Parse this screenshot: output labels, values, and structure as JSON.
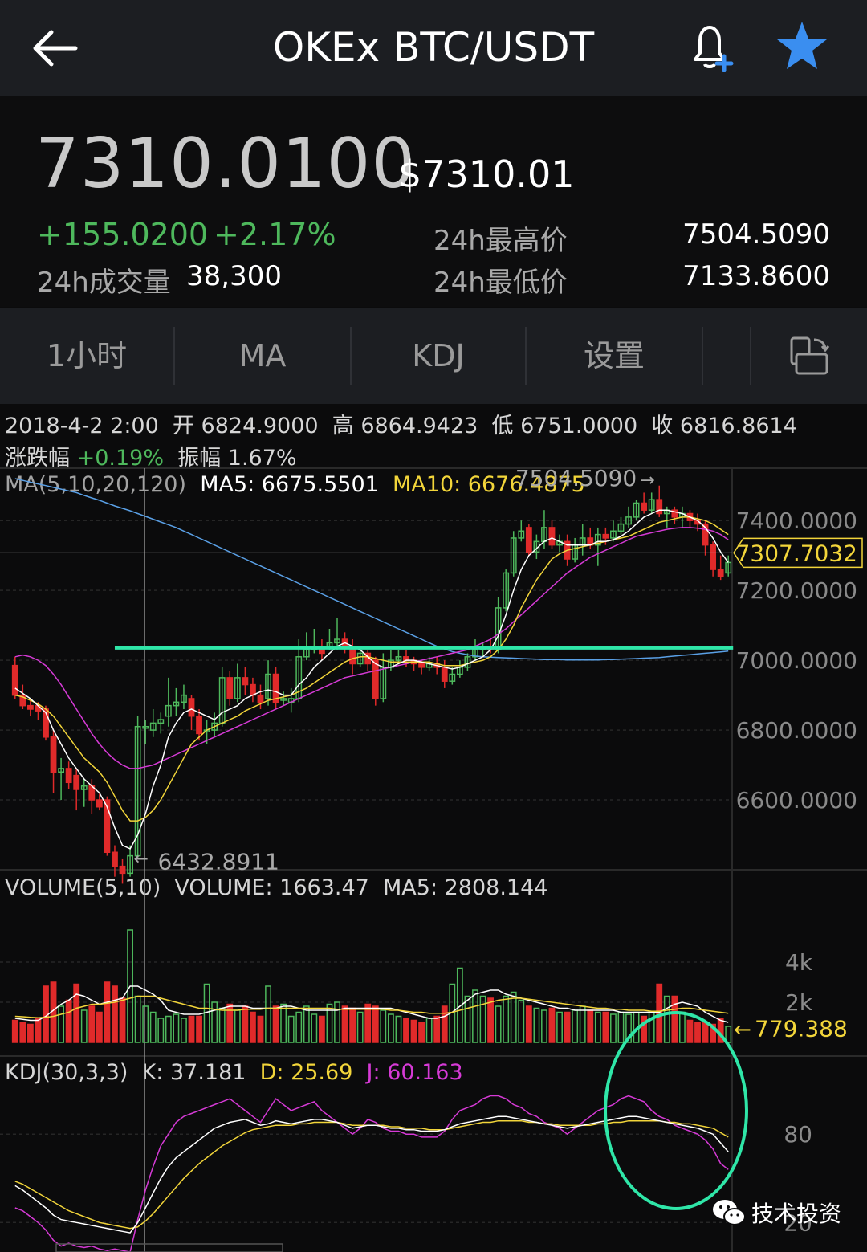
{
  "header": {
    "title": "OKEx BTC/USDT"
  },
  "ticker": {
    "price": "7310.0100",
    "usd_price": "$7310.01",
    "change": "+155.0200",
    "change_pct": "+2.17%",
    "volume_label": "24h成交量",
    "volume": "38,300",
    "high_label": "24h最高价",
    "high": "7504.5090",
    "low_label": "24h最低价",
    "low": "7133.8600"
  },
  "tabs": {
    "interval": "1小时",
    "ma": "MA",
    "kdj": "KDJ",
    "settings": "设置"
  },
  "candle_info": {
    "date": "2018-4-2 2:00",
    "open_label": "开",
    "open": "6824.9000",
    "high_label": "高",
    "high": "6864.9423",
    "low_label": "低",
    "low": "6751.0000",
    "close_label": "收",
    "close": "6816.8614",
    "change_label": "涨跌幅",
    "change": "+0.19%",
    "amp_label": "振幅",
    "amp": "1.67%"
  },
  "ma_legend": {
    "name": "MA(5,10,20,120)",
    "ma5": "MA5: 6675.5501",
    "ma10": "MA10: 6676.4875"
  },
  "vol_legend": {
    "name": "VOLUME(5,10)",
    "volume": "VOLUME: 1663.47",
    "ma5": "MA5: 2808.144"
  },
  "kdj_legend": {
    "name": "KDJ(30,3,3)",
    "k": "K: 37.181",
    "d": "D: 25.69",
    "j": "J: 60.163"
  },
  "watermark": "技术投资",
  "colors": {
    "up": "#4eb85c",
    "down": "#e02a2a",
    "ma5": "#ffffff",
    "ma10": "#f2d53a",
    "ma20": "#d63ad6",
    "ma120": "#5aa0e6",
    "annotation": "#2fe6a8",
    "star": "#3a8ef0"
  },
  "chart_data": {
    "type": "candlestick",
    "price_axis": {
      "ticks": [
        "7400.0000",
        "7200.0000",
        "7000.0000",
        "6800.0000",
        "6600.0000"
      ],
      "range": [
        6400,
        7550
      ]
    },
    "current_price_label": "7307.7032",
    "current_price": 7307.7032,
    "max_label": "7504.5090",
    "max_value": 7504.509,
    "min_label": "6432.8911",
    "min_value": 6432.8911,
    "support_line": 7035,
    "candles": [
      [
        6985,
        6900,
        7010,
        6890
      ],
      [
        6900,
        6870,
        6930,
        6860
      ],
      [
        6870,
        6860,
        6890,
        6840
      ],
      [
        6870,
        6855,
        6880,
        6830
      ],
      [
        6860,
        6780,
        6870,
        6770
      ],
      [
        6780,
        6680,
        6800,
        6620
      ],
      [
        6680,
        6690,
        6720,
        6600
      ],
      [
        6690,
        6650,
        6710,
        6630
      ],
      [
        6670,
        6630,
        6690,
        6570
      ],
      [
        6630,
        6640,
        6660,
        6580
      ],
      [
        6640,
        6600,
        6660,
        6560
      ],
      [
        6600,
        6580,
        6620,
        6570
      ],
      [
        6600,
        6450,
        6610,
        6440
      ],
      [
        6450,
        6410,
        6470,
        6380
      ],
      [
        6410,
        6390,
        6430,
        6360
      ],
      [
        6390,
        6440,
        6470,
        6380
      ],
      [
        6440,
        6810,
        6840,
        6430
      ],
      [
        6810,
        6810,
        6830,
        6760
      ],
      [
        6800,
        6820,
        6860,
        6780
      ],
      [
        6820,
        6830,
        6850,
        6790
      ],
      [
        6840,
        6870,
        6950,
        6810
      ],
      [
        6870,
        6880,
        6920,
        6840
      ],
      [
        6880,
        6900,
        6930,
        6860
      ],
      [
        6890,
        6840,
        6900,
        6800
      ],
      [
        6840,
        6790,
        6860,
        6770
      ],
      [
        6800,
        6800,
        6830,
        6760
      ],
      [
        6800,
        6820,
        6850,
        6780
      ],
      [
        6820,
        6950,
        6980,
        6810
      ],
      [
        6950,
        6890,
        6970,
        6870
      ],
      [
        6890,
        6950,
        6990,
        6880
      ],
      [
        6950,
        6930,
        6980,
        6900
      ],
      [
        6930,
        6900,
        6950,
        6880
      ],
      [
        6900,
        6880,
        6930,
        6860
      ],
      [
        6890,
        6960,
        7000,
        6870
      ],
      [
        6960,
        6880,
        6980,
        6860
      ],
      [
        6890,
        6890,
        6910,
        6870
      ],
      [
        6880,
        6890,
        6920,
        6850
      ],
      [
        6890,
        7010,
        7060,
        6880
      ],
      [
        7010,
        7030,
        7080,
        7000
      ],
      [
        7030,
        7040,
        7090,
        7020
      ],
      [
        7040,
        7020,
        7060,
        7000
      ],
      [
        7040,
        7050,
        7090,
        7030
      ],
      [
        7050,
        7060,
        7120,
        7030
      ],
      [
        7060,
        7040,
        7080,
        7020
      ],
      [
        7040,
        6990,
        7060,
        6960
      ],
      [
        6990,
        7020,
        7040,
        6980
      ],
      [
        7020,
        6990,
        7030,
        6970
      ],
      [
        7000,
        6890,
        7010,
        6870
      ],
      [
        6890,
        6980,
        7020,
        6880
      ],
      [
        6980,
        7000,
        7030,
        6970
      ],
      [
        7000,
        7010,
        7030,
        6990
      ],
      [
        7010,
        7000,
        7030,
        6980
      ],
      [
        7000,
        6990,
        7010,
        6970
      ],
      [
        6990,
        6980,
        7000,
        6960
      ],
      [
        6980,
        6990,
        7010,
        6970
      ],
      [
        6990,
        6980,
        7010,
        6960
      ],
      [
        6980,
        6940,
        7000,
        6920
      ],
      [
        6940,
        6960,
        6980,
        6930
      ],
      [
        6960,
        6980,
        7000,
        6950
      ],
      [
        6980,
        7010,
        7020,
        6970
      ],
      [
        7010,
        7030,
        7060,
        7000
      ],
      [
        7030,
        7040,
        7050,
        7010
      ],
      [
        7040,
        7030,
        7060,
        7020
      ],
      [
        7030,
        7150,
        7180,
        7020
      ],
      [
        7150,
        7250,
        7260,
        7140
      ],
      [
        7250,
        7350,
        7370,
        7240
      ],
      [
        7350,
        7370,
        7400,
        7340
      ],
      [
        7380,
        7310,
        7390,
        7300
      ],
      [
        7310,
        7340,
        7360,
        7290
      ],
      [
        7340,
        7380,
        7430,
        7320
      ],
      [
        7380,
        7330,
        7400,
        7320
      ],
      [
        7330,
        7340,
        7360,
        7310
      ],
      [
        7340,
        7290,
        7360,
        7270
      ],
      [
        7290,
        7330,
        7350,
        7280
      ],
      [
        7330,
        7350,
        7390,
        7300
      ],
      [
        7350,
        7330,
        7380,
        7320
      ],
      [
        7330,
        7360,
        7380,
        7270
      ],
      [
        7360,
        7350,
        7380,
        7330
      ],
      [
        7350,
        7370,
        7400,
        7340
      ],
      [
        7370,
        7390,
        7410,
        7360
      ],
      [
        7390,
        7410,
        7440,
        7380
      ],
      [
        7410,
        7450,
        7460,
        7400
      ],
      [
        7450,
        7430,
        7480,
        7420
      ],
      [
        7430,
        7460,
        7480,
        7420
      ],
      [
        7460,
        7420,
        7500,
        7410
      ],
      [
        7420,
        7430,
        7440,
        7380
      ],
      [
        7430,
        7410,
        7440,
        7390
      ],
      [
        7410,
        7420,
        7440,
        7380
      ],
      [
        7420,
        7400,
        7430,
        7380
      ],
      [
        7400,
        7390,
        7420,
        7370
      ],
      [
        7390,
        7330,
        7400,
        7300
      ],
      [
        7330,
        7260,
        7340,
        7240
      ],
      [
        7260,
        7240,
        7300,
        7230
      ],
      [
        7250,
        7280,
        7300,
        7240
      ]
    ],
    "ma5": [
      6920,
      6905,
      6890,
      6870,
      6850,
      6800,
      6760,
      6720,
      6690,
      6660,
      6640,
      6620,
      6580,
      6520,
      6470,
      6460,
      6500,
      6560,
      6640,
      6700,
      6780,
      6820,
      6850,
      6860,
      6850,
      6840,
      6830,
      6850,
      6860,
      6870,
      6890,
      6900,
      6910,
      6915,
      6910,
      6900,
      6900,
      6930,
      6950,
      6980,
      7000,
      7020,
      7040,
      7050,
      7040,
      7030,
      7010,
      6990,
      6980,
      6980,
      6990,
      7000,
      7000,
      6995,
      6990,
      6985,
      6980,
      6975,
      6980,
      6990,
      7000,
      7010,
      7030,
      7070,
      7130,
      7200,
      7260,
      7300,
      7320,
      7340,
      7350,
      7340,
      7330,
      7330,
      7330,
      7330,
      7340,
      7340,
      7345,
      7355,
      7370,
      7390,
      7410,
      7420,
      7430,
      7430,
      7425,
      7420,
      7410,
      7400,
      7380,
      7350,
      7310,
      7280
    ],
    "ma10": [
      6900,
      6895,
      6885,
      6875,
      6860,
      6840,
      6810,
      6780,
      6750,
      6720,
      6700,
      6680,
      6650,
      6610,
      6570,
      6540,
      6540,
      6550,
      6570,
      6600,
      6640,
      6680,
      6720,
      6760,
      6780,
      6800,
      6810,
      6820,
      6830,
      6840,
      6855,
      6865,
      6875,
      6885,
      6890,
      6895,
      6900,
      6910,
      6920,
      6935,
      6950,
      6965,
      6980,
      6995,
      7005,
      7010,
      7010,
      7005,
      7000,
      6995,
      6995,
      6995,
      6995,
      6995,
      6995,
      6990,
      6985,
      6985,
      6985,
      6990,
      6995,
      7000,
      7010,
      7030,
      7060,
      7100,
      7150,
      7190,
      7230,
      7260,
      7290,
      7305,
      7315,
      7320,
      7325,
      7330,
      7335,
      7340,
      7345,
      7350,
      7355,
      7365,
      7375,
      7385,
      7395,
      7400,
      7405,
      7410,
      7410,
      7405,
      7400,
      7390,
      7375,
      7360
    ],
    "ma20": [
      7010,
      7015,
      7010,
      7000,
      6985,
      6960,
      6930,
      6895,
      6860,
      6825,
      6790,
      6760,
      6735,
      6715,
      6700,
      6690,
      6690,
      6695,
      6700,
      6710,
      6720,
      6730,
      6740,
      6750,
      6760,
      6770,
      6780,
      6790,
      6800,
      6810,
      6820,
      6830,
      6840,
      6850,
      6860,
      6870,
      6880,
      6890,
      6900,
      6910,
      6920,
      6930,
      6940,
      6950,
      6955,
      6960,
      6965,
      6970,
      6975,
      6980,
      6985,
      6990,
      6995,
      7000,
      7005,
      7010,
      7015,
      7020,
      7025,
      7030,
      7040,
      7050,
      7060,
      7075,
      7090,
      7110,
      7130,
      7150,
      7170,
      7190,
      7210,
      7230,
      7250,
      7265,
      7280,
      7295,
      7305,
      7315,
      7325,
      7335,
      7345,
      7355,
      7360,
      7365,
      7370,
      7375,
      7378,
      7380,
      7380,
      7378,
      7375,
      7370,
      7360,
      7345
    ],
    "ma120": [
      7520,
      7515,
      7510,
      7505,
      7500,
      7495,
      7490,
      7485,
      7480,
      7472,
      7465,
      7458,
      7450,
      7442,
      7435,
      7428,
      7420,
      7412,
      7404,
      7396,
      7388,
      7380,
      7370,
      7360,
      7350,
      7340,
      7330,
      7320,
      7310,
      7300,
      7290,
      7280,
      7270,
      7260,
      7250,
      7240,
      7230,
      7220,
      7210,
      7200,
      7190,
      7180,
      7170,
      7160,
      7150,
      7140,
      7130,
      7120,
      7110,
      7100,
      7090,
      7080,
      7070,
      7060,
      7050,
      7040,
      7032,
      7025,
      7020,
      7016,
      7012,
      7010,
      7009,
      7008,
      7007,
      7006,
      7005,
      7004,
      7003,
      7002,
      7002,
      7002,
      7001,
      7001,
      7001,
      7001,
      7001,
      7002,
      7002,
      7003,
      7004,
      7005,
      7006,
      7007,
      7008,
      7010,
      7012,
      7014,
      7016,
      7018,
      7020,
      7022,
      7024,
      7026
    ],
    "volume_axis": {
      "ticks": [
        "4k",
        "2k"
      ],
      "range": [
        0,
        5800
      ]
    },
    "volume_current_label": "779.388",
    "volume": [
      1100,
      1000,
      900,
      1200,
      2800,
      3000,
      1800,
      2100,
      2900,
      1600,
      1800,
      1500,
      3000,
      2800,
      2200,
      5600,
      2300,
      1800,
      1500,
      1200,
      1300,
      1400,
      1200,
      1300,
      1300,
      2900,
      2000,
      1700,
      1900,
      1600,
      1800,
      1500,
      1300,
      2800,
      1800,
      1900,
      1300,
      1500,
      1800,
      1400,
      1300,
      1900,
      2000,
      1800,
      1700,
      1500,
      1900,
      1800,
      1600,
      1400,
      1300,
      1200,
      1100,
      1000,
      1200,
      1300,
      1800,
      2900,
      3700,
      2300,
      2600,
      2300,
      2200,
      1800,
      2300,
      2500,
      2100,
      1800,
      1700,
      1600,
      1700,
      1500,
      1500,
      1600,
      1800,
      1600,
      1500,
      1500,
      1400,
      1500,
      1400,
      1500,
      1300,
      1500,
      2900,
      2300,
      2300,
      1500,
      1100,
      1000,
      1000,
      900,
      1200,
      800
    ],
    "vol_ma5": [
      1200,
      1150,
      1100,
      1100,
      1300,
      1600,
      1900,
      2100,
      2400,
      2300,
      2100,
      1900,
      2000,
      2100,
      2200,
      2800,
      2800,
      2600,
      2400,
      2100,
      1600,
      1500,
      1400,
      1400,
      1400,
      1500,
      1600,
      1700,
      1800,
      1800,
      1800,
      1700,
      1700,
      1700,
      1700,
      1800,
      1800,
      1700,
      1600,
      1600,
      1600,
      1600,
      1600,
      1700,
      1700,
      1700,
      1700,
      1700,
      1700,
      1700,
      1600,
      1500,
      1400,
      1300,
      1200,
      1200,
      1300,
      1500,
      1800,
      2100,
      2400,
      2500,
      2600,
      2600,
      2400,
      2300,
      2200,
      2100,
      2000,
      1900,
      1800,
      1700,
      1700,
      1600,
      1600,
      1600,
      1600,
      1600,
      1600,
      1500,
      1500,
      1500,
      1500,
      1500,
      1500,
      1700,
      1900,
      2000,
      1900,
      1800,
      1500,
      1300,
      1100,
      1000
    ],
    "vol_ma10": [
      1300,
      1280,
      1250,
      1230,
      1250,
      1300,
      1400,
      1500,
      1700,
      1800,
      1900,
      1900,
      1950,
      2000,
      2100,
      2200,
      2300,
      2300,
      2300,
      2200,
      2100,
      2000,
      1900,
      1800,
      1700,
      1700,
      1650,
      1600,
      1600,
      1600,
      1650,
      1650,
      1650,
      1700,
      1700,
      1700,
      1700,
      1700,
      1700,
      1700,
      1700,
      1700,
      1650,
      1650,
      1650,
      1650,
      1650,
      1650,
      1650,
      1600,
      1600,
      1550,
      1500,
      1500,
      1450,
      1450,
      1450,
      1500,
      1600,
      1700,
      1800,
      1900,
      2000,
      2100,
      2150,
      2200,
      2200,
      2150,
      2100,
      2050,
      2000,
      1950,
      1900,
      1850,
      1800,
      1750,
      1700,
      1700,
      1650,
      1650,
      1600,
      1600,
      1600,
      1550,
      1550,
      1600,
      1650,
      1700,
      1700,
      1650,
      1600,
      1550,
      1500,
      1450
    ],
    "kdj_axis": {
      "ticks": [
        "80",
        "20"
      ],
      "range": [
        0,
        115
      ]
    },
    "kdj_k": [
      45,
      42,
      38,
      34,
      30,
      25,
      22,
      21,
      20,
      19,
      18,
      17,
      16,
      15,
      14,
      13,
      20,
      30,
      40,
      50,
      58,
      64,
      68,
      72,
      76,
      80,
      84,
      86,
      88,
      89,
      90,
      88,
      86,
      87,
      89,
      88,
      87,
      88,
      89,
      90,
      90,
      89,
      88,
      86,
      84,
      85,
      86,
      86,
      85,
      84,
      84,
      83,
      83,
      82,
      82,
      82,
      83,
      85,
      87,
      88,
      89,
      90,
      91,
      92,
      92,
      91,
      90,
      89,
      88,
      87,
      86,
      85,
      84,
      85,
      86,
      87,
      88,
      89,
      90,
      91,
      92,
      92,
      91,
      90,
      89,
      88,
      87,
      86,
      85,
      84,
      82,
      80,
      74,
      68
    ],
    "kdj_d": [
      48,
      46,
      43,
      40,
      37,
      34,
      31,
      28,
      26,
      24,
      22,
      20,
      19,
      18,
      17,
      16,
      17,
      21,
      26,
      32,
      38,
      44,
      50,
      55,
      60,
      64,
      68,
      72,
      75,
      78,
      81,
      83,
      84,
      85,
      86,
      86,
      86,
      87,
      87,
      88,
      88,
      88,
      88,
      87,
      86,
      86,
      86,
      86,
      86,
      85,
      85,
      84,
      84,
      84,
      83,
      83,
      83,
      84,
      85,
      86,
      87,
      88,
      88,
      89,
      89,
      89,
      89,
      88,
      88,
      87,
      87,
      86,
      86,
      86,
      86,
      86,
      87,
      87,
      88,
      88,
      89,
      89,
      89,
      89,
      89,
      88,
      88,
      87,
      87,
      86,
      85,
      84,
      81,
      78
    ],
    "kdj_j": [
      30,
      28,
      24,
      20,
      15,
      8,
      4,
      6,
      4,
      3,
      4,
      2,
      1,
      2,
      1,
      0,
      22,
      42,
      58,
      72,
      80,
      88,
      92,
      94,
      96,
      98,
      100,
      102,
      104,
      100,
      96,
      92,
      88,
      96,
      104,
      100,
      96,
      98,
      100,
      102,
      96,
      92,
      88,
      84,
      80,
      84,
      90,
      88,
      84,
      82,
      82,
      80,
      80,
      78,
      78,
      78,
      82,
      90,
      96,
      98,
      100,
      104,
      106,
      106,
      104,
      100,
      98,
      94,
      92,
      88,
      86,
      84,
      80,
      84,
      88,
      92,
      96,
      98,
      100,
      104,
      106,
      104,
      102,
      96,
      92,
      90,
      86,
      84,
      82,
      80,
      76,
      70,
      60,
      56
    ]
  }
}
